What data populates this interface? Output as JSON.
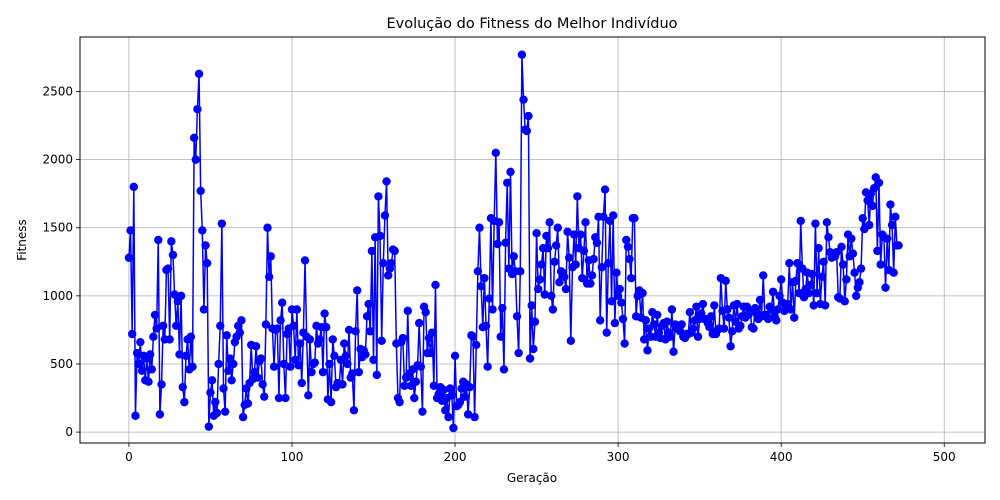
{
  "chart_data": {
    "type": "line",
    "title": "Evolução do Fitness do Melhor Indivíduo",
    "xlabel": "Geração",
    "ylabel": "Fitness",
    "xlim": [
      -30,
      525
    ],
    "ylim": [
      -80,
      2900
    ],
    "xticks": [
      0,
      100,
      200,
      300,
      400,
      500
    ],
    "yticks": [
      0,
      500,
      1000,
      1500,
      2000,
      2500
    ],
    "grid": true,
    "legend": "none",
    "line_color": "#0000ff",
    "marker": "circle",
    "series": [
      {
        "x_start": 0,
        "x_step": 1,
        "values": [
          1280,
          1480,
          720,
          1800,
          120,
          580,
          500,
          660,
          450,
          560,
          380,
          540,
          370,
          570,
          460,
          700,
          860,
          760,
          1410,
          130,
          350,
          780,
          680,
          1190,
          1200,
          680,
          1400,
          1300,
          1010,
          780,
          960,
          570,
          1000,
          330,
          220,
          560,
          680,
          460,
          700,
          480,
          2160,
          2000,
          2370,
          2630,
          1770,
          1480,
          900,
          1370,
          1240,
          40,
          290,
          380,
          120,
          220,
          140,
          500,
          780,
          1530,
          320,
          150,
          710,
          450,
          540,
          380,
          500,
          660,
          700,
          780,
          730,
          820,
          110,
          200,
          320,
          210,
          360,
          640,
          390,
          440,
          630,
          400,
          520,
          540,
          350,
          260,
          790,
          1500,
          1140,
          1290,
          760,
          480,
          750,
          760,
          250,
          820,
          950,
          500,
          250,
          720,
          760,
          480,
          900,
          780,
          530,
          900,
          490,
          650,
          360,
          730,
          1260,
          700,
          270,
          680,
          440,
          500,
          510,
          780,
          650,
          680,
          770,
          440,
          870,
          770,
          240,
          500,
          220,
          680,
          560,
          330,
          360,
          350,
          530,
          350,
          650,
          560,
          500,
          750,
          400,
          430,
          160,
          740,
          1040,
          440,
          610,
          550,
          600,
          570,
          850,
          940,
          740,
          1330,
          530,
          1430,
          420,
          1730,
          1440,
          670,
          1240,
          1590,
          1840,
          1150,
          1200,
          1240,
          1340,
          1330,
          650,
          250,
          220,
          660,
          690,
          340,
          400,
          890,
          430,
          340,
          460,
          250,
          370,
          490,
          800,
          480,
          150,
          920,
          880,
          580,
          690,
          580,
          730,
          340,
          1080,
          250,
          280,
          330,
          230,
          310,
          160,
          250,
          110,
          320,
          270,
          30,
          560,
          190,
          200,
          220,
          320,
          370,
          260,
          350,
          130,
          330,
          710,
          700,
          110,
          640,
          1180,
          1500,
          1070,
          770,
          1130,
          780,
          480,
          980,
          1570,
          900,
          1550,
          2050,
          1380,
          1540,
          700,
          910,
          460,
          1390,
          1830,
          1200,
          1910,
          1160,
          1290,
          1180,
          850,
          580,
          1180,
          2770,
          2440,
          2220,
          2210,
          2320,
          540,
          930,
          610,
          810,
          1460,
          1050,
          1120,
          1230,
          1350,
          1010,
          1440,
          1350,
          1540,
          1000,
          900,
          1250,
          1370,
          1500,
          1100,
          1180,
          1170,
          1140,
          1050,
          1470,
          1280,
          670,
          1210,
          1450,
          1230,
          1730,
          1350,
          1450,
          1130,
          1330,
          1540,
          1090,
          1260,
          1090,
          1150,
          1270,
          1430,
          1390,
          1580,
          820,
          1210,
          1580,
          1780,
          730,
          1240,
          1550,
          960,
          1590,
          800,
          1170,
          1000,
          1050,
          950,
          830,
          650,
          1410,
          1360,
          1270,
          1130,
          1570,
          1570,
          850,
          1000,
          1040,
          840,
          1020,
          680,
          820,
          600,
          760,
          700,
          880,
          790,
          700,
          860,
          730,
          690,
          780,
          800,
          680,
          810,
          730,
          700,
          900,
          590,
          790,
          760,
          780,
          740,
          790,
          700,
          690,
          720,
          720,
          880,
          730,
          760,
          820,
          920,
          700,
          830,
          870,
          940,
          830,
          830,
          800,
          770,
          850,
          720,
          930,
          720,
          750,
          760,
          1130,
          890,
          760,
          1110,
          900,
          840,
          630,
          740,
          930,
          810,
          940,
          760,
          780,
          850,
          920,
          840,
          920,
          860,
          890,
          770,
          760,
          910,
          870,
          830,
          970,
          850,
          1150,
          860,
          860,
          830,
          920,
          900,
          1030,
          850,
          820,
          900,
          1000,
          1120,
          950,
          890,
          920,
          940,
          1240,
          900,
          1100,
          840,
          1110,
          1240,
          1020,
          1550,
          1200,
          990,
          1050,
          1170,
          1020,
          1080,
          1160,
          930,
          1530,
          1020,
          1350,
          940,
          1140,
          1250,
          930,
          1540,
          1430,
          1320,
          1280,
          1300,
          1290,
          1320,
          990,
          980,
          1360,
          1230,
          960,
          1120,
          1450,
          1290,
          1420,
          1310,
          1170,
          1000,
          1060,
          1100,
          1200,
          1570,
          1490,
          1760,
          1700,
          1520,
          1750,
          1660,
          1790,
          1870,
          1330,
          1830,
          1230,
          1450,
          1430,
          1060,
          1420,
          1190,
          1670,
          1520,
          1170,
          1580,
          1370,
          1370
        ]
      }
    ]
  }
}
